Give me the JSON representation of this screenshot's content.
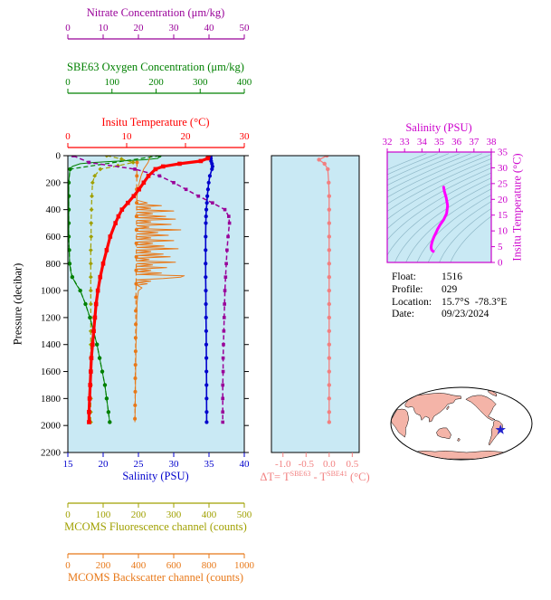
{
  "info_panel": {
    "lines": [
      {
        "label": "Float:",
        "value": "1516"
      },
      {
        "label": "Profile:",
        "value": "029"
      },
      {
        "label": "Location:",
        "value": "15.7°S  -78.3°E"
      },
      {
        "label": "Date:",
        "value": "09/23/2024"
      }
    ]
  },
  "map": {
    "land_color": "#F4B4A8",
    "ocean_color": "#FFFFFF",
    "outline_color": "#000000",
    "marker_color": "#2222CC",
    "marker_lon_e": 281.7,
    "marker_lat": -15.7
  },
  "chart_data": [
    {
      "id": "profile-plot",
      "type": "line",
      "plot_bg": "#C9E9F4",
      "y_axis": {
        "label": "Pressure (decibar)",
        "range": [
          0,
          2200
        ],
        "ticks": [
          0,
          200,
          400,
          600,
          800,
          1000,
          1200,
          1400,
          1600,
          1800,
          2000,
          2200
        ],
        "color": "#000000"
      },
      "x_axes": [
        {
          "id": "nitrate",
          "label": "Nitrate Concentration (μm/kg)",
          "range": [
            0,
            50
          ],
          "ticks": [
            0,
            10,
            20,
            30,
            40,
            50
          ],
          "color": "#990099"
        },
        {
          "id": "oxygen",
          "label": "SBE63 Oxygen Concentration (μm/kg)",
          "range": [
            0,
            400
          ],
          "ticks": [
            0,
            100,
            200,
            300,
            400
          ],
          "color": "#008000"
        },
        {
          "id": "temperature",
          "label": "Insitu Temperature (°C)",
          "range": [
            0,
            30
          ],
          "ticks": [
            0,
            10,
            20,
            30
          ],
          "color": "#FF0000"
        },
        {
          "id": "salinity",
          "label": "Salinity (PSU)",
          "range": [
            15,
            40
          ],
          "ticks": [
            15,
            20,
            25,
            30,
            35,
            40
          ],
          "color": "#0000CC"
        },
        {
          "id": "fluorescence",
          "label": "MCOMS Fluorescence channel (counts)",
          "range": [
            0,
            500
          ],
          "ticks": [
            0,
            100,
            200,
            300,
            400,
            500
          ],
          "color": "#A0A000"
        },
        {
          "id": "backscatter",
          "label": "MCOMS Backscatter channel (counts)",
          "range": [
            0,
            1000
          ],
          "ticks": [
            0,
            200,
            400,
            600,
            800,
            1000
          ],
          "color": "#E87818"
        }
      ],
      "series": [
        {
          "name": "SBE63 Oxygen (continuous)",
          "axis": "oxygen",
          "color": "#008000",
          "line": "solid",
          "width": 1,
          "marker": "none",
          "pressure": [
            0,
            10,
            20,
            30,
            40,
            50,
            60,
            80,
            100,
            150,
            200,
            300,
            400,
            500,
            600,
            700,
            800,
            850,
            900,
            950,
            1000,
            1100,
            1200,
            1300,
            1400,
            1500,
            1600,
            1700,
            1800,
            1900,
            1975
          ],
          "values": [
            208,
            207,
            204,
            175,
            115,
            60,
            28,
            10,
            5,
            3,
            2,
            2,
            2,
            2,
            2,
            3,
            4,
            6,
            10,
            18,
            28,
            40,
            50,
            58,
            66,
            72,
            78,
            84,
            88,
            92,
            95
          ]
        },
        {
          "name": "MCOMS Backscatter (continuous)",
          "axis": "backscatter",
          "color": "#E87818",
          "line": "solid",
          "width": 1,
          "marker": "none",
          "pressure": [
            0,
            50,
            100,
            150,
            200,
            250,
            300,
            330,
            350,
            360,
            370,
            380,
            390,
            400,
            410,
            420,
            430,
            440,
            450,
            460,
            470,
            480,
            490,
            500,
            510,
            520,
            530,
            540,
            550,
            560,
            570,
            580,
            590,
            600,
            610,
            620,
            630,
            640,
            650,
            660,
            670,
            680,
            690,
            700,
            710,
            720,
            730,
            740,
            750,
            760,
            770,
            780,
            790,
            800,
            810,
            820,
            830,
            840,
            850,
            860,
            870,
            880,
            890,
            900,
            910,
            920,
            930,
            940,
            950,
            960,
            980,
            1000,
            1050,
            1100,
            1200,
            1300,
            1400,
            1500,
            1600,
            1700,
            1800,
            1900,
            1975
          ],
          "values": [
            470,
            455,
            430,
            415,
            405,
            398,
            392,
            390,
            450,
            392,
            530,
            390,
            470,
            392,
            600,
            390,
            480,
            392,
            555,
            390,
            610,
            392,
            470,
            390,
            585,
            392,
            460,
            390,
            640,
            392,
            510,
            390,
            570,
            392,
            470,
            390,
            600,
            392,
            480,
            390,
            545,
            392,
            625,
            390,
            470,
            392,
            540,
            390,
            580,
            392,
            460,
            390,
            610,
            392,
            480,
            390,
            560,
            392,
            470,
            390,
            530,
            392,
            660,
            640,
            540,
            392,
            470,
            390,
            450,
            392,
            420,
            400,
            395,
            392,
            390,
            388,
            386,
            385,
            384,
            383,
            382,
            381,
            380
          ]
        },
        {
          "name": "MCOMS Fluorescence",
          "axis": "fluorescence",
          "color": "#A0A000",
          "line": "dashed",
          "width": 1.2,
          "marker": "diamond",
          "marker_size": 3.4,
          "pressure": [
            0,
            25,
            50,
            75,
            100,
            150,
            200,
            300,
            400,
            500,
            600,
            700,
            800,
            900,
            1000,
            1100,
            1200,
            1300,
            1400,
            1500,
            1600,
            1700,
            1800,
            1900,
            1975
          ],
          "values": [
            110,
            152,
            185,
            142,
            92,
            76,
            70,
            68,
            67,
            66,
            66,
            65,
            65,
            65,
            65,
            65,
            65,
            65,
            65,
            65,
            65,
            65,
            65,
            65,
            65
          ]
        },
        {
          "name": "SBE63 Oxygen (samples)",
          "axis": "oxygen",
          "color": "#008000",
          "line": "dashed",
          "width": 1.2,
          "marker": "circle",
          "marker_size": 4.4,
          "pressure": [
            0,
            100,
            200,
            300,
            400,
            500,
            600,
            700,
            800,
            900,
            1000,
            1100,
            1200,
            1300,
            1400,
            1500,
            1600,
            1700,
            1800,
            1900,
            1975
          ],
          "values": [
            208,
            5,
            2,
            2,
            2,
            2,
            2,
            3,
            4,
            10,
            28,
            40,
            50,
            58,
            66,
            72,
            78,
            84,
            88,
            92,
            95
          ]
        },
        {
          "name": "MCOMS Backscatter (samples)",
          "axis": "backscatter",
          "color": "#E87818",
          "line": "dashed",
          "width": 1.2,
          "marker": "circle",
          "marker_size": 4,
          "pressure": [
            50,
            150,
            250,
            350,
            450,
            550,
            650,
            750,
            850,
            950,
            1050,
            1150,
            1250,
            1350,
            1450,
            1550,
            1650,
            1750,
            1850,
            1950
          ],
          "values": [
            392,
            391,
            390,
            390,
            389,
            389,
            388,
            388,
            387,
            387,
            386,
            385,
            385,
            384,
            384,
            383,
            382,
            382,
            381,
            380
          ]
        },
        {
          "name": "Nitrate",
          "axis": "nitrate",
          "color": "#990099",
          "line": "dashed",
          "width": 1.5,
          "marker": "square",
          "marker_size": 3.6,
          "pressure": [
            0,
            50,
            100,
            150,
            200,
            250,
            300,
            350,
            400,
            450,
            500,
            600,
            700,
            800,
            900,
            1000,
            1100,
            1200,
            1300,
            1400,
            1500,
            1600,
            1700,
            1800,
            1900,
            1975
          ],
          "values": [
            1.5,
            6,
            19,
            26,
            30,
            33.5,
            37,
            41,
            44.5,
            45.6,
            45.8,
            45.4,
            45.1,
            44.9,
            44.7,
            44.5,
            44.4,
            44.3,
            44.2,
            44.1,
            44.0,
            44.0,
            43.9,
            43.9,
            43.9,
            43.9
          ]
        },
        {
          "name": "Salinity",
          "axis": "salinity",
          "color": "#0000CC",
          "line": "solid",
          "width": 1.6,
          "marker": "circle",
          "marker_size": 4.2,
          "pressure": [
            0,
            20,
            40,
            60,
            80,
            100,
            150,
            200,
            250,
            300,
            350,
            400,
            450,
            500,
            600,
            700,
            800,
            900,
            1000,
            1100,
            1200,
            1300,
            1400,
            1500,
            1600,
            1700,
            1800,
            1900,
            1975
          ],
          "values": [
            35.25,
            35.26,
            35.3,
            35.42,
            35.5,
            35.42,
            35.12,
            34.96,
            34.86,
            34.76,
            34.7,
            34.62,
            34.58,
            34.55,
            34.53,
            34.52,
            34.52,
            34.53,
            34.55,
            34.56,
            34.58,
            34.6,
            34.61,
            34.63,
            34.64,
            34.65,
            34.66,
            34.67,
            34.67
          ]
        },
        {
          "name": "Insitu Temperature",
          "axis": "temperature",
          "color": "#FF0000",
          "line": "solid",
          "width": 3.2,
          "marker": "square",
          "marker_size": 4.6,
          "pressure": [
            0,
            20,
            40,
            60,
            80,
            100,
            150,
            200,
            250,
            300,
            350,
            400,
            450,
            500,
            600,
            700,
            800,
            900,
            1000,
            1100,
            1200,
            1300,
            1400,
            1500,
            1600,
            1700,
            1800,
            1900,
            1975
          ],
          "values": [
            23.9,
            23.8,
            22.6,
            19.0,
            16.2,
            14.9,
            13.7,
            12.9,
            12.1,
            11.2,
            10.2,
            9.2,
            8.6,
            8.1,
            7.2,
            6.6,
            6.0,
            5.5,
            5.1,
            4.8,
            4.6,
            4.4,
            4.2,
            4.0,
            3.9,
            3.8,
            3.7,
            3.6,
            3.6
          ]
        }
      ]
    },
    {
      "id": "delta-t-plot",
      "type": "line",
      "plot_bg": "#C9E9F4",
      "x_axis": {
        "label": "ΔT= TSBE63 - TSBE41 (°C)",
        "label_parts": {
          "p1": "ΔT= T",
          "sup1": "SBE63",
          "p2": " - T",
          "sup2": "SBE41",
          "p3": " (°C)"
        },
        "range": [
          -1.25,
          0.65
        ],
        "ticks": [
          -1,
          -0.5,
          0,
          0.5
        ],
        "tick_labels": [
          "-1.0",
          "-0.5",
          "0.0",
          "0.5"
        ],
        "color": "#F28080"
      },
      "y_axis": {
        "shared_with": "profile-plot",
        "range": [
          0,
          2200
        ]
      },
      "series": [
        {
          "name": "delta-T",
          "color": "#F28080",
          "line": "solid",
          "width": 1.3,
          "marker": "circle",
          "marker_size": 4.4,
          "pressure": [
            0,
            30,
            60,
            100,
            200,
            300,
            400,
            500,
            600,
            700,
            800,
            900,
            1000,
            1100,
            1200,
            1300,
            1400,
            1500,
            1600,
            1700,
            1800,
            1900,
            1975
          ],
          "values": [
            -0.05,
            -0.22,
            -0.1,
            -0.03,
            -0.01,
            0,
            0,
            0,
            0,
            0,
            0,
            0,
            0,
            0,
            0,
            0,
            0,
            0,
            0,
            0,
            0,
            0,
            0
          ]
        }
      ]
    },
    {
      "id": "ts-diagram",
      "type": "line",
      "plot_bg": "#C9E9F4",
      "x_axis": {
        "label": "Salinity (PSU)",
        "range": [
          32,
          38
        ],
        "ticks": [
          32,
          33,
          34,
          35,
          36,
          37,
          38
        ],
        "color": "#CC00CC"
      },
      "y_axis": {
        "label": "Insitu Temperature (°C)",
        "range": [
          0,
          35
        ],
        "ticks": [
          0,
          5,
          10,
          15,
          20,
          25,
          30,
          35
        ],
        "color": "#CC00CC"
      },
      "isopycnal_contours": {
        "visible": true,
        "color": "#8FB8C8",
        "levels": [
          20,
          20.5,
          21,
          21.5,
          22,
          22.5,
          23,
          23.5,
          24,
          24.5,
          25,
          25.5,
          26,
          26.5,
          27,
          27.5,
          28,
          28.5
        ]
      },
      "series": [
        {
          "name": "T-S profile",
          "color": "#FF00FF",
          "width": 3,
          "salinity": [
            35.25,
            35.3,
            35.4,
            35.48,
            35.42,
            35.25,
            35.05,
            34.9,
            34.8,
            34.7,
            34.63,
            34.57,
            34.54,
            34.53,
            34.55,
            34.6,
            34.66
          ],
          "temperature": [
            23.9,
            22.5,
            20.5,
            18.0,
            15.5,
            13.5,
            12.0,
            10.5,
            9.3,
            8.2,
            7.2,
            6.2,
            5.4,
            4.7,
            4.1,
            3.7,
            3.5
          ]
        }
      ]
    }
  ]
}
